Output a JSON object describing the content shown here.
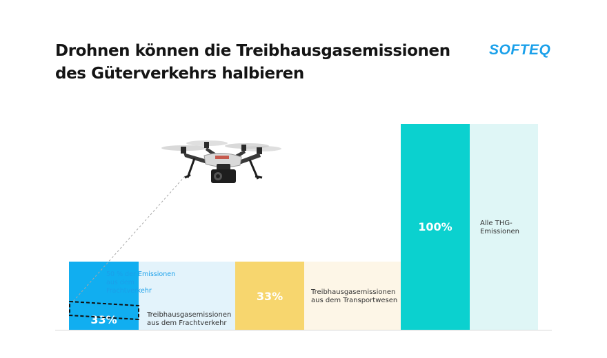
{
  "header": {
    "title_line1": "Drohnen können die Treibhausgasemissionen",
    "title_line2": "des Güterverkehrs halbieren",
    "logo_text": "SOFTEQ"
  },
  "annotation": {
    "line1": "50 % der Emissionen",
    "line2": "aus dem",
    "line3": "Frachtverkehr"
  },
  "colors": {
    "freight": "#11aef0",
    "freight_bg": "#e3f3fb",
    "transport": "#f7d66e",
    "transport_bg": "#fdf6e7",
    "all": "#0bd1cf",
    "all_bg": "#dff6f6",
    "accent": "#1aa0ea"
  },
  "chart_data": {
    "type": "bar",
    "title": "Drohnen können die Treibhausgasemissionen des Güterverkehrs halbieren",
    "categories": [
      "Treibhausgasemissionen aus dem Frachtverkehr",
      "Treibhausgasemissionen aus dem Transportwesen",
      "Alle THG-Emissionen"
    ],
    "values": [
      33,
      33,
      100
    ],
    "value_labels": [
      "33%",
      "33%",
      "100%"
    ],
    "label_lines": [
      [
        "Treibhausgasemissionen",
        "aus dem Frachtverkehr"
      ],
      [
        "Treibhausgasemissionen",
        "aus dem Transportwesen"
      ],
      [
        "Alle THG-",
        "Emissionen"
      ]
    ],
    "ylim": [
      0,
      100
    ],
    "grid": false,
    "xlabel": "",
    "ylabel": ""
  }
}
